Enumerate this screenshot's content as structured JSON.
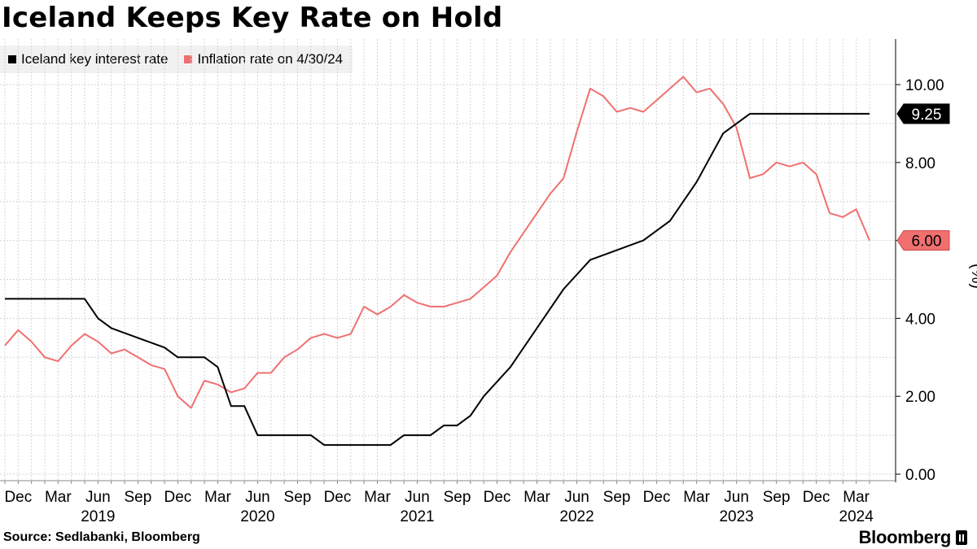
{
  "title": "Iceland Keeps Key Rate on Hold",
  "legend": {
    "series1": "Iceland key interest rate",
    "series2": "Inflation rate on 4/30/24"
  },
  "source": "Source: Sedlabanki, Bloomberg",
  "brand": "Bloomberg",
  "chart_data": {
    "type": "line",
    "title": "Iceland Keeps Key Rate on Hold",
    "xlabel": "",
    "ylabel": "(%)",
    "ylim": [
      0,
      11
    ],
    "yticks": [
      "0.00",
      "2.00",
      "4.00",
      "6.00",
      "8.00",
      "10.00"
    ],
    "xticks_months": [
      {
        "date": "2018-12",
        "label": "Dec"
      },
      {
        "date": "2019-03",
        "label": "Mar"
      },
      {
        "date": "2019-06",
        "label": "Jun"
      },
      {
        "date": "2019-09",
        "label": "Sep"
      },
      {
        "date": "2019-12",
        "label": "Dec"
      },
      {
        "date": "2020-03",
        "label": "Mar"
      },
      {
        "date": "2020-06",
        "label": "Jun"
      },
      {
        "date": "2020-09",
        "label": "Sep"
      },
      {
        "date": "2020-12",
        "label": "Dec"
      },
      {
        "date": "2021-03",
        "label": "Mar"
      },
      {
        "date": "2021-06",
        "label": "Jun"
      },
      {
        "date": "2021-09",
        "label": "Sep"
      },
      {
        "date": "2021-12",
        "label": "Dec"
      },
      {
        "date": "2022-03",
        "label": "Mar"
      },
      {
        "date": "2022-06",
        "label": "Jun"
      },
      {
        "date": "2022-09",
        "label": "Sep"
      },
      {
        "date": "2022-12",
        "label": "Dec"
      },
      {
        "date": "2023-03",
        "label": "Mar"
      },
      {
        "date": "2023-06",
        "label": "Jun"
      },
      {
        "date": "2023-09",
        "label": "Sep"
      },
      {
        "date": "2023-12",
        "label": "Dec"
      },
      {
        "date": "2024-03",
        "label": "Mar"
      }
    ],
    "xticks_years": [
      {
        "date": "2019-06",
        "label": "2019"
      },
      {
        "date": "2020-06",
        "label": "2020"
      },
      {
        "date": "2021-06",
        "label": "2021"
      },
      {
        "date": "2022-06",
        "label": "2022"
      },
      {
        "date": "2023-06",
        "label": "2023"
      },
      {
        "date": "2024-03",
        "label": "2024"
      }
    ],
    "series": [
      {
        "name": "Iceland key interest rate",
        "color": "#000000",
        "last_label": "9.25",
        "points": [
          [
            "2018-11",
            4.5
          ],
          [
            "2019-05",
            4.5
          ],
          [
            "2019-06",
            4.0
          ],
          [
            "2019-07",
            3.75
          ],
          [
            "2019-09",
            3.5
          ],
          [
            "2019-11",
            3.25
          ],
          [
            "2019-12",
            3.0
          ],
          [
            "2020-02",
            3.0
          ],
          [
            "2020-03",
            2.75
          ],
          [
            "2020-04",
            1.75
          ],
          [
            "2020-05",
            1.75
          ],
          [
            "2020-06",
            1.0
          ],
          [
            "2020-10",
            1.0
          ],
          [
            "2020-11",
            0.75
          ],
          [
            "2021-04",
            0.75
          ],
          [
            "2021-05",
            1.0
          ],
          [
            "2021-07",
            1.0
          ],
          [
            "2021-08",
            1.25
          ],
          [
            "2021-09",
            1.25
          ],
          [
            "2021-10",
            1.5
          ],
          [
            "2021-11",
            2.0
          ],
          [
            "2022-01",
            2.75
          ],
          [
            "2022-03",
            3.75
          ],
          [
            "2022-05",
            4.75
          ],
          [
            "2022-07",
            5.5
          ],
          [
            "2022-09",
            5.75
          ],
          [
            "2022-11",
            6.0
          ],
          [
            "2023-01",
            6.5
          ],
          [
            "2023-03",
            7.5
          ],
          [
            "2023-05",
            8.75
          ],
          [
            "2023-07",
            9.25
          ],
          [
            "2024-04",
            9.25
          ]
        ]
      },
      {
        "name": "Inflation rate on 4/30/24",
        "color": "#f07070",
        "last_label": "6.00",
        "points": [
          [
            "2018-11",
            3.3
          ],
          [
            "2018-12",
            3.7
          ],
          [
            "2019-01",
            3.4
          ],
          [
            "2019-02",
            3.0
          ],
          [
            "2019-03",
            2.9
          ],
          [
            "2019-04",
            3.3
          ],
          [
            "2019-05",
            3.6
          ],
          [
            "2019-06",
            3.4
          ],
          [
            "2019-07",
            3.1
          ],
          [
            "2019-08",
            3.2
          ],
          [
            "2019-09",
            3.0
          ],
          [
            "2019-10",
            2.8
          ],
          [
            "2019-11",
            2.7
          ],
          [
            "2019-12",
            2.0
          ],
          [
            "2020-01",
            1.7
          ],
          [
            "2020-02",
            2.4
          ],
          [
            "2020-03",
            2.3
          ],
          [
            "2020-04",
            2.1
          ],
          [
            "2020-05",
            2.2
          ],
          [
            "2020-06",
            2.6
          ],
          [
            "2020-07",
            2.6
          ],
          [
            "2020-08",
            3.0
          ],
          [
            "2020-09",
            3.2
          ],
          [
            "2020-10",
            3.5
          ],
          [
            "2020-11",
            3.6
          ],
          [
            "2020-12",
            3.5
          ],
          [
            "2021-01",
            3.6
          ],
          [
            "2021-02",
            4.3
          ],
          [
            "2021-03",
            4.1
          ],
          [
            "2021-04",
            4.3
          ],
          [
            "2021-05",
            4.6
          ],
          [
            "2021-06",
            4.4
          ],
          [
            "2021-07",
            4.3
          ],
          [
            "2021-08",
            4.3
          ],
          [
            "2021-09",
            4.4
          ],
          [
            "2021-10",
            4.5
          ],
          [
            "2021-11",
            4.8
          ],
          [
            "2021-12",
            5.1
          ],
          [
            "2022-01",
            5.7
          ],
          [
            "2022-02",
            6.2
          ],
          [
            "2022-03",
            6.7
          ],
          [
            "2022-04",
            7.2
          ],
          [
            "2022-05",
            7.6
          ],
          [
            "2022-06",
            8.8
          ],
          [
            "2022-07",
            9.9
          ],
          [
            "2022-08",
            9.7
          ],
          [
            "2022-09",
            9.3
          ],
          [
            "2022-10",
            9.4
          ],
          [
            "2022-11",
            9.3
          ],
          [
            "2022-12",
            9.6
          ],
          [
            "2023-01",
            9.9
          ],
          [
            "2023-02",
            10.2
          ],
          [
            "2023-03",
            9.8
          ],
          [
            "2023-04",
            9.9
          ],
          [
            "2023-05",
            9.5
          ],
          [
            "2023-06",
            8.9
          ],
          [
            "2023-07",
            7.6
          ],
          [
            "2023-08",
            7.7
          ],
          [
            "2023-09",
            8.0
          ],
          [
            "2023-10",
            7.9
          ],
          [
            "2023-11",
            8.0
          ],
          [
            "2023-12",
            7.7
          ],
          [
            "2024-01",
            6.7
          ],
          [
            "2024-02",
            6.6
          ],
          [
            "2024-03",
            6.8
          ],
          [
            "2024-04",
            6.0
          ]
        ]
      }
    ],
    "grid": true,
    "legend_position": "top-left"
  }
}
